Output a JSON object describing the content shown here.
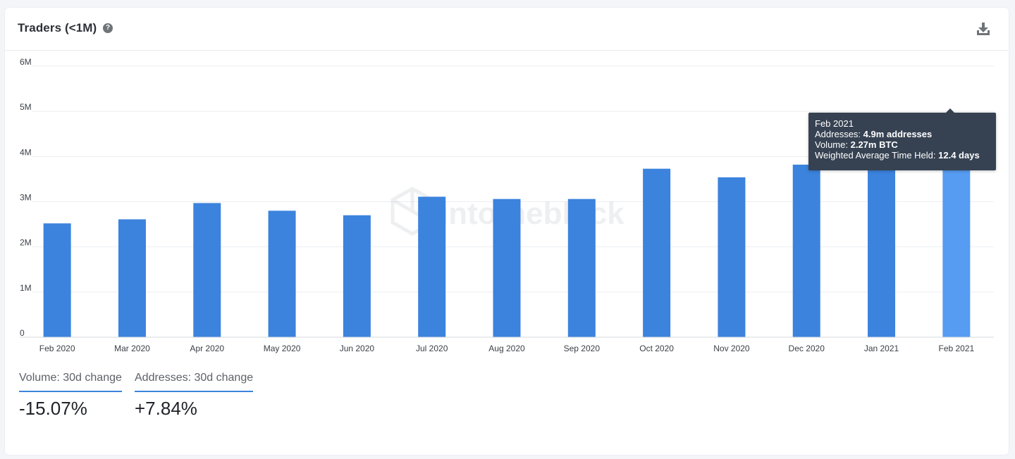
{
  "header": {
    "title": "Traders (<1M)",
    "help_icon": "question-circle-icon",
    "download_icon": "download-icon"
  },
  "colors": {
    "bar": "#3b83dd",
    "bar_highlight": "#559cf2",
    "grid": "#eceef2",
    "axis_text": "#3a3f46",
    "tooltip_bg": "#364252"
  },
  "watermark": "intotheblock",
  "chart_data": {
    "type": "bar",
    "title": "Traders (<1M)",
    "categories": [
      "Feb 2020",
      "Mar 2020",
      "Apr 2020",
      "May 2020",
      "Jun 2020",
      "Jul 2020",
      "Aug 2020",
      "Sep 2020",
      "Oct 2020",
      "Nov 2020",
      "Dec 2020",
      "Jan 2021",
      "Feb 2021"
    ],
    "values": [
      2.52,
      2.61,
      2.97,
      2.8,
      2.7,
      3.11,
      3.06,
      3.06,
      3.73,
      3.54,
      3.82,
      3.9,
      4.9
    ],
    "value_unit": "M",
    "ylim": [
      0,
      6
    ],
    "yticks": [
      "0",
      "1M",
      "2M",
      "3M",
      "4M",
      "5M",
      "6M"
    ],
    "grid": true,
    "highlight_index": 12
  },
  "tooltip": {
    "date": "Feb 2021",
    "addresses_label": "Addresses:",
    "addresses_value": "4.9m addresses",
    "volume_label": "Volume:",
    "volume_value": "2.27m BTC",
    "held_label": "Weighted Average Time Held:",
    "held_value": "12.4 days"
  },
  "stats": {
    "volume": {
      "label": "Volume: 30d change",
      "value": "-15.07%"
    },
    "addresses": {
      "label": "Addresses: 30d change",
      "value": "+7.84%"
    }
  }
}
